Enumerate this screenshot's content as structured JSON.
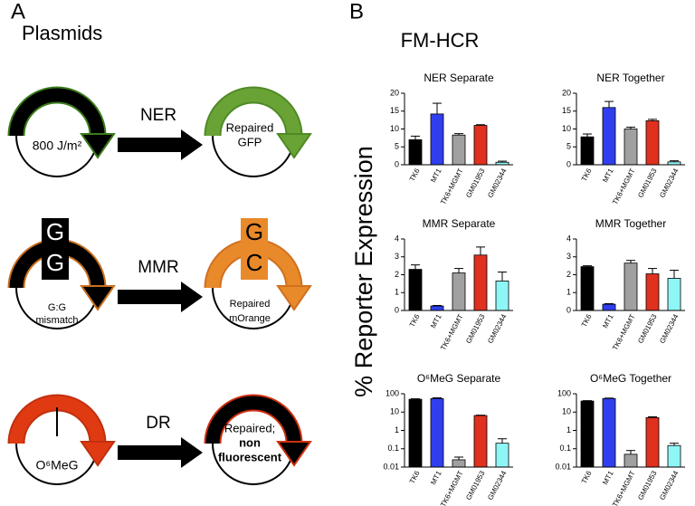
{
  "panel_a": {
    "label": "A",
    "title": "Plasmids",
    "rows": [
      {
        "left_text": [
          "800 J/m²"
        ],
        "process": "NER",
        "right_text": [
          "Repaired",
          "GFP"
        ]
      },
      {
        "left_letters": [
          "G",
          "G"
        ],
        "left_text": [
          "G:G",
          "mismatch"
        ],
        "process": "MMR",
        "right_letters": [
          "G",
          "C"
        ],
        "right_text": [
          "Repaired",
          "mOrange"
        ]
      },
      {
        "left_text": [
          "O⁶MeG"
        ],
        "process": "DR",
        "right_text": [
          "Repaired;",
          "non",
          "fluorescent"
        ]
      }
    ]
  },
  "panel_b": {
    "label": "B",
    "title": "FM-HCR",
    "y_label": "% Reporter Expression"
  },
  "chart_data": [
    {
      "type": "bar",
      "title": "NER Separate",
      "categories": [
        "TK6",
        "MT1",
        "TK6+MGMT",
        "GM01953",
        "GM02344"
      ],
      "values": [
        7,
        14.2,
        8.3,
        11,
        0.7
      ],
      "errors": [
        1,
        3,
        0.4,
        0.2,
        0.3
      ],
      "colors": [
        "#000000",
        "#2f3ff0",
        "#a0a0a0",
        "#e0301e",
        "#8ff6f6"
      ],
      "ylim": [
        0,
        20
      ],
      "yticks": [
        0,
        5,
        10,
        15,
        20
      ],
      "log_scale": false
    },
    {
      "type": "bar",
      "title": "NER Together",
      "categories": [
        "TK6",
        "MT1",
        "TK6+MGMT",
        "GM01953",
        "GM02344"
      ],
      "values": [
        7.8,
        16,
        10,
        12.3,
        0.8
      ],
      "errors": [
        0.8,
        1.7,
        0.5,
        0.4,
        0.3
      ],
      "colors": [
        "#000000",
        "#2f3ff0",
        "#a0a0a0",
        "#e0301e",
        "#8ff6f6"
      ],
      "ylim": [
        0,
        20
      ],
      "yticks": [
        0,
        5,
        10,
        15,
        20
      ],
      "log_scale": false
    },
    {
      "type": "bar",
      "title": "MMR Separate",
      "categories": [
        "TK6",
        "MT1",
        "TK6+MGMT",
        "GM01953",
        "GM02344"
      ],
      "values": [
        2.3,
        0.25,
        2.1,
        3.1,
        1.65
      ],
      "errors": [
        0.25,
        0.03,
        0.25,
        0.45,
        0.5
      ],
      "colors": [
        "#000000",
        "#2f3ff0",
        "#a0a0a0",
        "#e0301e",
        "#8ff6f6"
      ],
      "ylim": [
        0,
        4
      ],
      "yticks": [
        0,
        1,
        2,
        3,
        4
      ],
      "log_scale": false
    },
    {
      "type": "bar",
      "title": "MMR Together",
      "categories": [
        "TK6",
        "MT1",
        "TK6+MGMT",
        "GM01953",
        "GM02344"
      ],
      "values": [
        2.45,
        0.35,
        2.65,
        2.05,
        1.8
      ],
      "errors": [
        0.05,
        0.03,
        0.15,
        0.3,
        0.45
      ],
      "colors": [
        "#000000",
        "#2f3ff0",
        "#a0a0a0",
        "#e0301e",
        "#8ff6f6"
      ],
      "ylim": [
        0,
        4
      ],
      "yticks": [
        0,
        1,
        2,
        3,
        4
      ],
      "log_scale": false
    },
    {
      "type": "bar",
      "title": "O⁶MeG Separate",
      "categories": [
        "TK6",
        "MT1",
        "TK6+MGMT",
        "GM01953",
        "GM02344"
      ],
      "values": [
        50,
        55,
        0.025,
        6.5,
        0.2
      ],
      "errors": [
        3,
        5,
        0.01,
        0.3,
        0.15
      ],
      "colors": [
        "#000000",
        "#2f3ff0",
        "#a0a0a0",
        "#e0301e",
        "#8ff6f6"
      ],
      "ylim": [
        0.01,
        100
      ],
      "yticks": [
        0.01,
        0.1,
        1,
        10,
        100
      ],
      "log_scale": true
    },
    {
      "type": "bar",
      "title": "O⁶MeG Together",
      "categories": [
        "TK6",
        "MT1",
        "TK6+MGMT",
        "GM01953",
        "GM02344"
      ],
      "values": [
        40,
        55,
        0.05,
        5,
        0.15
      ],
      "errors": [
        2,
        3,
        0.03,
        0.5,
        0.05
      ],
      "colors": [
        "#000000",
        "#2f3ff0",
        "#a0a0a0",
        "#e0301e",
        "#8ff6f6"
      ],
      "ylim": [
        0.01,
        100
      ],
      "yticks": [
        0.01,
        0.1,
        1,
        10,
        100
      ],
      "log_scale": true
    }
  ]
}
